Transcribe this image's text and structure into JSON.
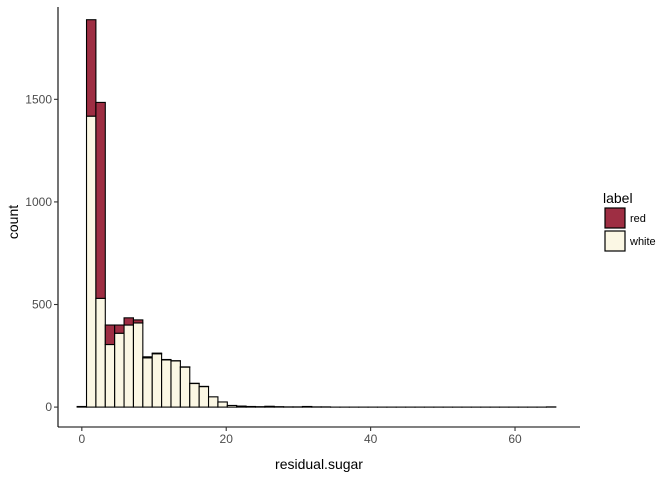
{
  "chart_data": {
    "type": "bar",
    "stacked": true,
    "xlabel": "residual.sugar",
    "ylabel": "count",
    "xlim": [
      -3.3,
      69
    ],
    "ylim": [
      -97,
      1950
    ],
    "x_ticks": [
      0,
      20,
      40,
      60
    ],
    "y_ticks": [
      0,
      500,
      1000,
      1500
    ],
    "bin_width": 1.3,
    "bins_x": [
      0,
      1.3,
      2.6,
      3.9,
      5.2,
      6.5,
      7.8,
      9.1,
      10.4,
      11.7,
      13.0,
      14.3,
      15.6,
      16.9,
      18.2,
      19.5,
      20.8,
      22.1,
      23.4,
      24.7,
      26.0,
      27.3,
      28.6,
      29.9,
      31.2,
      32.5,
      33.8,
      35.1,
      36.4,
      37.7,
      39.0,
      40.3,
      41.6,
      42.9,
      44.2,
      45.5,
      46.8,
      48.1,
      49.4,
      50.7,
      52.0,
      53.3,
      54.6,
      55.9,
      57.2,
      58.5,
      59.8,
      61.1,
      62.4,
      63.7,
      65.0
    ],
    "series": [
      {
        "name": "white",
        "color": "#fbf7e4",
        "values": [
          3,
          1418,
          530,
          305,
          360,
          400,
          410,
          240,
          260,
          230,
          225,
          195,
          115,
          100,
          50,
          25,
          8,
          5,
          3,
          2,
          4,
          2,
          1,
          1,
          3,
          1,
          1,
          0,
          0,
          0,
          0,
          0,
          0,
          0,
          0,
          0,
          0,
          0,
          0,
          0,
          0,
          0,
          0,
          0,
          0,
          0,
          0,
          0,
          0,
          0,
          1
        ]
      },
      {
        "name": "red",
        "color": "#9e2e43",
        "values": [
          0,
          470,
          955,
          95,
          40,
          35,
          15,
          5,
          3,
          2,
          1,
          1,
          1,
          1,
          0,
          0,
          0,
          0,
          0,
          0,
          0,
          0,
          0,
          0,
          0,
          0,
          0,
          0,
          0,
          0,
          0,
          0,
          0,
          0,
          0,
          0,
          0,
          0,
          0,
          0,
          0,
          0,
          0,
          0,
          0,
          0,
          0,
          0,
          0,
          0,
          0
        ]
      }
    ],
    "legend": {
      "title": "label",
      "entries": [
        "red",
        "white"
      ],
      "position": "right"
    }
  }
}
